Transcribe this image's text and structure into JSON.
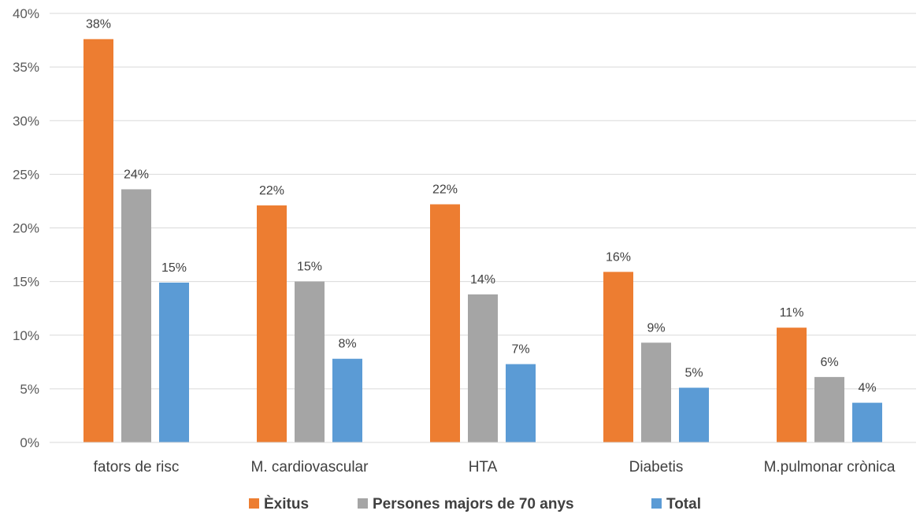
{
  "chart_data": {
    "type": "bar",
    "categories": [
      "fators de risc",
      "M. cardiovascular",
      "HTA",
      "Diabetis",
      "M.pulmonar crònica"
    ],
    "series": [
      {
        "name": "Èxitus",
        "values": [
          37.6,
          22.1,
          22.2,
          15.9,
          10.7
        ],
        "labels": [
          "38%",
          "22%",
          "22%",
          "16%",
          "11%"
        ]
      },
      {
        "name": "Persones majors de 70 anys",
        "values": [
          23.6,
          15.0,
          13.8,
          9.3,
          6.1
        ],
        "labels": [
          "24%",
          "15%",
          "14%",
          "9%",
          "6%"
        ]
      },
      {
        "name": "Total",
        "values": [
          14.9,
          7.8,
          7.3,
          5.1,
          3.7
        ],
        "labels": [
          "15%",
          "8%",
          "7%",
          "5%",
          "4%"
        ]
      }
    ],
    "ylim": [
      0,
      40
    ],
    "yticks": [
      0,
      5,
      10,
      15,
      20,
      25,
      30,
      35,
      40
    ],
    "ytick_labels": [
      "0%",
      "5%",
      "10%",
      "15%",
      "20%",
      "25%",
      "30%",
      "35%",
      "40%"
    ],
    "grid": true,
    "legend_position": "bottom",
    "colors": [
      "#ED7D31",
      "#A5A5A5",
      "#5B9BD5"
    ],
    "title": "",
    "xlabel": "",
    "ylabel": ""
  }
}
